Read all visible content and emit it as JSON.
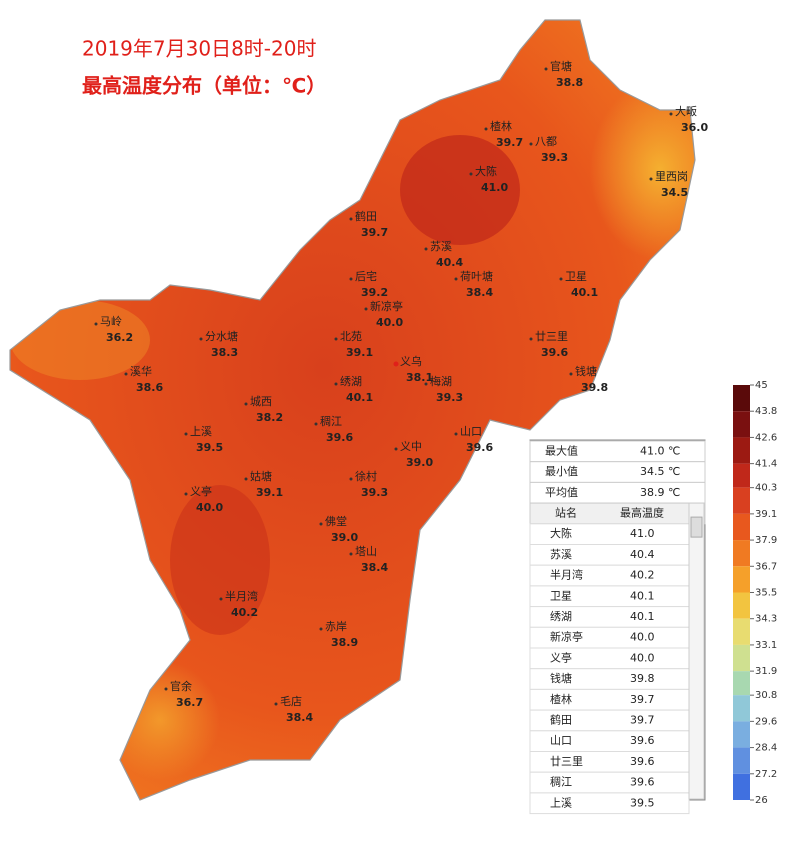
{
  "title": [
    "2019年7月30日8时-20时",
    "最高温度分布（单位：℃）"
  ],
  "stations": [
    {
      "name": "官塘",
      "value": "38.8"
    },
    {
      "name": "大畈",
      "value": "36.0"
    },
    {
      "name": "楂林",
      "value": "39.7"
    },
    {
      "name": "八都",
      "value": "39.3"
    },
    {
      "name": "里西岗",
      "value": "34.5"
    },
    {
      "name": "大陈",
      "value": "41.0"
    },
    {
      "name": "鹤田",
      "value": "39.7"
    },
    {
      "name": "苏溪",
      "value": "40.4"
    },
    {
      "name": "卫星",
      "value": "40.1"
    },
    {
      "name": "后宅",
      "value": "39.2"
    },
    {
      "name": "荷叶塘",
      "value": "38.4"
    },
    {
      "name": "新凉亭",
      "value": "40.0"
    },
    {
      "name": "马岭",
      "value": "36.2"
    },
    {
      "name": "分水塘",
      "value": "38.3"
    },
    {
      "name": "北苑",
      "value": "39.1"
    },
    {
      "name": "廿三里",
      "value": "39.6"
    },
    {
      "name": "义乌",
      "value": "38.1"
    },
    {
      "name": "溪华",
      "value": "38.6"
    },
    {
      "name": "绣湖",
      "value": "40.1"
    },
    {
      "name": "梅湖",
      "value": "39.3"
    },
    {
      "name": "钱塘",
      "value": "39.8"
    },
    {
      "name": "城西",
      "value": "38.2"
    },
    {
      "name": "稠江",
      "value": "39.6"
    },
    {
      "name": "山口",
      "value": "39.6"
    },
    {
      "name": "上溪",
      "value": "39.5"
    },
    {
      "name": "义中",
      "value": "39.0"
    },
    {
      "name": "姑塘",
      "value": "39.1"
    },
    {
      "name": "徐村",
      "value": "39.3"
    },
    {
      "name": "义亭",
      "value": "40.0"
    },
    {
      "name": "佛堂",
      "value": "39.0"
    },
    {
      "name": "塔山",
      "value": "38.4"
    },
    {
      "name": "半月湾",
      "value": "40.2"
    },
    {
      "name": "赤岸",
      "value": "38.9"
    },
    {
      "name": "官余",
      "value": "36.7"
    },
    {
      "name": "毛店",
      "value": "38.4"
    }
  ],
  "summary": [
    [
      "最大值",
      "41.0 ℃"
    ],
    [
      "最小值",
      "34.5 ℃"
    ],
    [
      "平均值",
      "38.9 ℃"
    ]
  ],
  "table": {
    "columns": [
      "站名",
      "最高温度"
    ],
    "rows": [
      [
        "大陈",
        "41.0"
      ],
      [
        "苏溪",
        "40.4"
      ],
      [
        "半月湾",
        "40.2"
      ],
      [
        "卫星",
        "40.1"
      ],
      [
        "绣湖",
        "40.1"
      ],
      [
        "新凉亭",
        "40.0"
      ],
      [
        "义亭",
        "40.0"
      ],
      [
        "钱塘",
        "39.8"
      ],
      [
        "楂林",
        "39.7"
      ],
      [
        "鹤田",
        "39.7"
      ],
      [
        "山口",
        "39.6"
      ],
      [
        "廿三里",
        "39.6"
      ],
      [
        "稠江",
        "39.6"
      ],
      [
        "上溪",
        "39.5"
      ]
    ]
  },
  "legend": {
    "ticks": [
      45,
      43.8,
      42.6,
      41.4,
      40.3,
      39.1,
      37.9,
      36.7,
      35.5,
      34.3,
      33.1,
      31.9,
      30.8,
      29.6,
      28.4,
      27.2,
      26
    ],
    "colors": [
      "#5a0a0a",
      "#7a1010",
      "#9c1a12",
      "#c0281a",
      "#d94020",
      "#e8581e",
      "#f07a22",
      "#f5a02a",
      "#f2c440",
      "#e8dc70",
      "#cfe090",
      "#a8d8b0",
      "#90c8d8",
      "#7aaee0",
      "#6090e0",
      "#4070e0"
    ]
  }
}
